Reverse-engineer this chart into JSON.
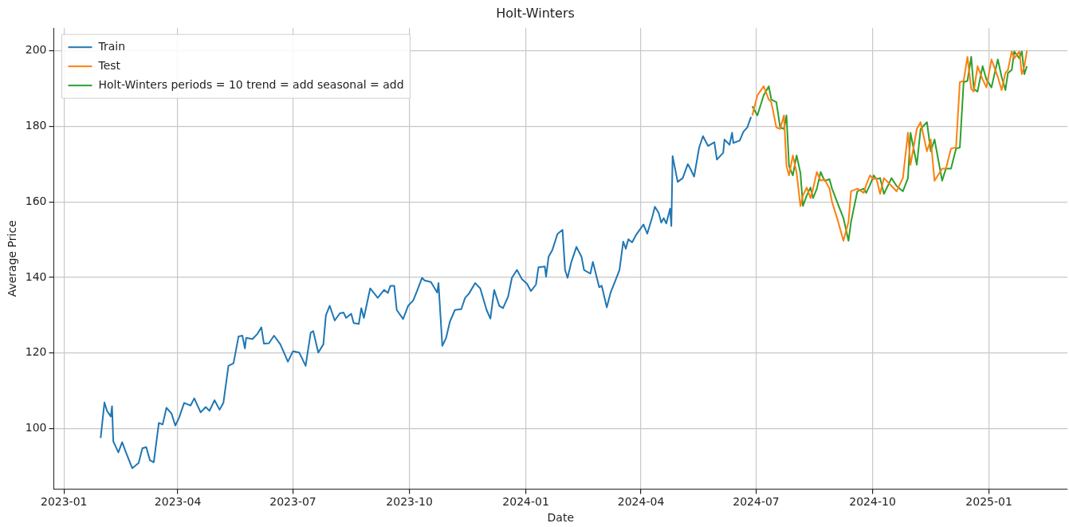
{
  "chart_data": {
    "type": "line",
    "title": "Holt-Winters",
    "xlabel": "Date",
    "ylabel": "Average Price",
    "xlim": [
      "2022-12-24",
      "2025-03-04"
    ],
    "xticks": [
      "2023-01",
      "2023-04",
      "2023-07",
      "2023-10",
      "2024-01",
      "2024-04",
      "2024-07",
      "2024-10",
      "2025-01"
    ],
    "ylim": [
      84,
      206
    ],
    "yticks": [
      100,
      120,
      140,
      160,
      180,
      200
    ],
    "grid": true,
    "legend": "top left",
    "marker": "none",
    "line_style": "solid",
    "series": [
      {
        "name": "Train",
        "color": "#1f77b4",
        "x": [
          "2023-01-30",
          "2023-02-02",
          "2023-02-04",
          "2023-02-07",
          "2023-02-08",
          "2023-02-09",
          "2023-02-13",
          "2023-02-16",
          "2023-02-19",
          "2023-02-24",
          "2023-03-01",
          "2023-03-04",
          "2023-03-07",
          "2023-03-10",
          "2023-03-13",
          "2023-03-17",
          "2023-03-20",
          "2023-03-23",
          "2023-03-27",
          "2023-03-30",
          "2023-04-02",
          "2023-04-06",
          "2023-04-11",
          "2023-04-14",
          "2023-04-19",
          "2023-04-23",
          "2023-04-26",
          "2023-04-30",
          "2023-05-04",
          "2023-05-07",
          "2023-05-11",
          "2023-05-15",
          "2023-05-19",
          "2023-05-22",
          "2023-05-24",
          "2023-05-25",
          "2023-05-30",
          "2023-06-03",
          "2023-06-06",
          "2023-06-08",
          "2023-06-12",
          "2023-06-16",
          "2023-06-21",
          "2023-06-27",
          "2023-07-01",
          "2023-07-06",
          "2023-07-11",
          "2023-07-15",
          "2023-07-17",
          "2023-07-21",
          "2023-07-25",
          "2023-07-27",
          "2023-07-30",
          "2023-08-03",
          "2023-08-07",
          "2023-08-10",
          "2023-08-12",
          "2023-08-16",
          "2023-08-18",
          "2023-08-22",
          "2023-08-24",
          "2023-08-26",
          "2023-08-31",
          "2023-09-06",
          "2023-09-11",
          "2023-09-14",
          "2023-09-16",
          "2023-09-19",
          "2023-09-21",
          "2023-09-26",
          "2023-09-30",
          "2023-10-04",
          "2023-10-07",
          "2023-10-11",
          "2023-10-13",
          "2023-10-18",
          "2023-10-23",
          "2023-10-24",
          "2023-10-27",
          "2023-10-30",
          "2023-11-02",
          "2023-11-06",
          "2023-11-11",
          "2023-11-14",
          "2023-11-17",
          "2023-11-22",
          "2023-11-26",
          "2023-12-01",
          "2023-12-04",
          "2023-12-07",
          "2023-12-11",
          "2023-12-14",
          "2023-12-18",
          "2023-12-21",
          "2023-12-25",
          "2023-12-29",
          "2024-01-02",
          "2024-01-05",
          "2024-01-09",
          "2024-01-11",
          "2024-01-16",
          "2024-01-17",
          "2024-01-19",
          "2024-01-22",
          "2024-01-26",
          "2024-01-30",
          "2024-02-01",
          "2024-02-03",
          "2024-02-06",
          "2024-02-10",
          "2024-02-14",
          "2024-02-16",
          "2024-02-21",
          "2024-02-23",
          "2024-02-28",
          "2024-03-01",
          "2024-03-05",
          "2024-03-08",
          "2024-03-11",
          "2024-03-15",
          "2024-03-18",
          "2024-03-20",
          "2024-03-22",
          "2024-03-25",
          "2024-03-28",
          "2024-04-03",
          "2024-04-06",
          "2024-04-10",
          "2024-04-12",
          "2024-04-15",
          "2024-04-17",
          "2024-04-19",
          "2024-04-21",
          "2024-04-24",
          "2024-04-25",
          "2024-04-26",
          "2024-04-30",
          "2024-05-04",
          "2024-05-08",
          "2024-05-10",
          "2024-05-13",
          "2024-05-17",
          "2024-05-20",
          "2024-05-24",
          "2024-05-29",
          "2024-05-31",
          "2024-06-05",
          "2024-06-06",
          "2024-06-10",
          "2024-06-12",
          "2024-06-13",
          "2024-06-18",
          "2024-06-21",
          "2024-06-24",
          "2024-06-27"
        ],
        "values": [
          97.5,
          106.9,
          104.7,
          103.2,
          105.9,
          96.6,
          93.7,
          96.4,
          93.7,
          89.5,
          90.9,
          94.8,
          95.1,
          91.6,
          91.1,
          101.5,
          101.1,
          105.5,
          104,
          100.8,
          102.9,
          106.8,
          106.1,
          108,
          104.3,
          105.7,
          104.7,
          107.5,
          105,
          106.8,
          116.6,
          117.3,
          124.4,
          124.6,
          121.2,
          124,
          123.7,
          125.1,
          126.8,
          122.5,
          122.6,
          124.6,
          122.3,
          117.7,
          120.5,
          120.1,
          116.6,
          125.4,
          125.8,
          120.1,
          122.3,
          130,
          132.5,
          128.6,
          130.5,
          130.7,
          129.3,
          130.4,
          127.9,
          127.7,
          131.9,
          129.3,
          137.1,
          134.6,
          136.7,
          135.9,
          137.8,
          137.8,
          131.4,
          129,
          132.5,
          133.9,
          136.4,
          139.9,
          139.2,
          138.8,
          136,
          138.5,
          121.9,
          124,
          128.3,
          131.4,
          131.6,
          134.6,
          135.7,
          138.5,
          137.1,
          131.4,
          129.1,
          136.7,
          132.5,
          131.9,
          134.9,
          139.9,
          142,
          139.5,
          138.3,
          136.4,
          138.1,
          142.7,
          142.9,
          140.2,
          145.5,
          147.3,
          151.5,
          152.6,
          142,
          139.9,
          144.1,
          148.1,
          145.5,
          142,
          141,
          144.1,
          137.4,
          137.8,
          132.1,
          136,
          138.5,
          142,
          149.5,
          147.6,
          150.1,
          149.3,
          151.2,
          154,
          151.6,
          156.1,
          158.7,
          157.1,
          154.5,
          155.7,
          154.3,
          158.2,
          153.6,
          172.1,
          165.3,
          166.3,
          170,
          168.8,
          166.7,
          174.4,
          177.4,
          174.8,
          175.8,
          171.2,
          173,
          176.5,
          175.1,
          178.3,
          175.6,
          176.2,
          178.6,
          179.7,
          182.5
        ]
      },
      {
        "name": "Test",
        "color": "#ff7f0e",
        "x": [
          "2024-06-28",
          "2024-07-02",
          "2024-07-07",
          "2024-07-11",
          "2024-07-13",
          "2024-07-17",
          "2024-07-20",
          "2024-07-23",
          "2024-07-25",
          "2024-07-27",
          "2024-07-30",
          "2024-08-02",
          "2024-08-05",
          "2024-08-07",
          "2024-08-10",
          "2024-08-13",
          "2024-08-15",
          "2024-08-18",
          "2024-08-21",
          "2024-08-24",
          "2024-08-28",
          "2024-08-30",
          "2024-09-03",
          "2024-09-08",
          "2024-09-12",
          "2024-09-14",
          "2024-09-19",
          "2024-09-24",
          "2024-09-26",
          "2024-09-29",
          "2024-10-02",
          "2024-10-04",
          "2024-10-07",
          "2024-10-10",
          "2024-10-16",
          "2024-10-20",
          "2024-10-25",
          "2024-10-29",
          "2024-10-31",
          "2024-11-05",
          "2024-11-08",
          "2024-11-13",
          "2024-11-16",
          "2024-11-19",
          "2024-11-25",
          "2024-11-28",
          "2024-12-02",
          "2024-12-06",
          "2024-12-09",
          "2024-12-12",
          "2024-12-15",
          "2024-12-18",
          "2024-12-20",
          "2024-12-23",
          "2024-12-27",
          "2024-12-30",
          "2025-01-03",
          "2025-01-08",
          "2025-01-11",
          "2025-01-14",
          "2025-01-16",
          "2025-01-19",
          "2025-01-21",
          "2025-01-25",
          "2025-01-27",
          "2025-01-29",
          "2025-01-31"
        ],
        "values": [
          182.9,
          188.2,
          190.6,
          187.1,
          186.4,
          179.7,
          179.3,
          182.9,
          169.5,
          167,
          172.3,
          167.7,
          158.9,
          161.7,
          163.8,
          161,
          163.5,
          167.9,
          165.6,
          166,
          163.5,
          160,
          155.7,
          149.7,
          154.7,
          162.8,
          163.5,
          162.4,
          164.5,
          167,
          166,
          166.3,
          162.1,
          166.3,
          164.2,
          162.8,
          166.3,
          178.3,
          169.8,
          179.3,
          181.1,
          173.4,
          176.5,
          165.6,
          168.8,
          168.8,
          174.1,
          174.4,
          191.7,
          192,
          198.4,
          189.9,
          189.2,
          195.9,
          192.4,
          190.3,
          197.7,
          193.1,
          189.6,
          194.1,
          194.9,
          199.8,
          198,
          199.8,
          193.8,
          195.9,
          200
        ]
      },
      {
        "name": "Holt-Winters periods = 10 trend = add seasonal = add",
        "color": "#2ca02c",
        "x": [
          "2024-06-28",
          "2024-07-02",
          "2024-07-07",
          "2024-07-11",
          "2024-07-13",
          "2024-07-17",
          "2024-07-20",
          "2024-07-23",
          "2024-07-25",
          "2024-07-27",
          "2024-07-30",
          "2024-08-02",
          "2024-08-05",
          "2024-08-07",
          "2024-08-10",
          "2024-08-13",
          "2024-08-15",
          "2024-08-18",
          "2024-08-21",
          "2024-08-24",
          "2024-08-28",
          "2024-08-30",
          "2024-09-03",
          "2024-09-08",
          "2024-09-12",
          "2024-09-14",
          "2024-09-19",
          "2024-09-24",
          "2024-09-26",
          "2024-09-29",
          "2024-10-02",
          "2024-10-04",
          "2024-10-07",
          "2024-10-10",
          "2024-10-16",
          "2024-10-20",
          "2024-10-25",
          "2024-10-29",
          "2024-10-31",
          "2024-11-05",
          "2024-11-08",
          "2024-11-13",
          "2024-11-16",
          "2024-11-19",
          "2024-11-25",
          "2024-11-28",
          "2024-12-02",
          "2024-12-06",
          "2024-12-09",
          "2024-12-12",
          "2024-12-15",
          "2024-12-18",
          "2024-12-20",
          "2024-12-23",
          "2024-12-27",
          "2024-12-30",
          "2025-01-03",
          "2025-01-08",
          "2025-01-11",
          "2025-01-14",
          "2025-01-16",
          "2025-01-19",
          "2025-01-21",
          "2025-01-25",
          "2025-01-27",
          "2025-01-29",
          "2025-01-31"
        ],
        "values": [
          185.3,
          182.9,
          188.2,
          190.6,
          187.1,
          186.4,
          179.7,
          179.3,
          182.9,
          169.5,
          167,
          172.3,
          167.7,
          158.9,
          161.7,
          163.8,
          161,
          163.5,
          167.9,
          165.6,
          166,
          163.5,
          160,
          155.7,
          149.7,
          154.7,
          162.8,
          163.5,
          162.4,
          164.5,
          167,
          166,
          166.3,
          162.1,
          166.3,
          164.2,
          162.8,
          166.3,
          178.3,
          169.8,
          179.3,
          181.1,
          173.4,
          176.5,
          165.6,
          168.8,
          168.8,
          174.1,
          174.4,
          191.7,
          192,
          198.4,
          189.9,
          189.2,
          195.9,
          192.4,
          190.3,
          197.7,
          193.1,
          189.6,
          194.1,
          194.9,
          199.8,
          198,
          199.8,
          193.8,
          195.9
        ]
      }
    ]
  }
}
